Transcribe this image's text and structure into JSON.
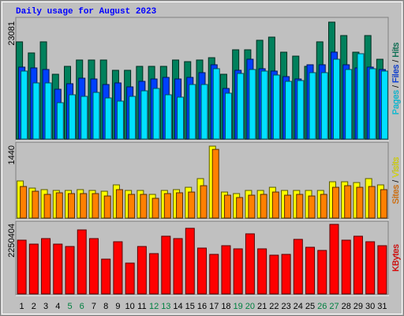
{
  "chart_data": [
    {
      "type": "bar",
      "title": "Daily usage for August 2023",
      "legend_separator": "/",
      "ylim": [
        0,
        23081
      ],
      "yticks": [
        23081
      ],
      "series": [
        {
          "name": "Hits",
          "color": "#00805c",
          "values": [
            19190,
            17000,
            19190,
            12790,
            14350,
            15600,
            15600,
            15600,
            13570,
            13570,
            14350,
            14350,
            14350,
            15600,
            15280,
            15600,
            16060,
            12790,
            17620,
            17620,
            19500,
            20120,
            17150,
            16370,
            14350,
            19190,
            23081,
            20430,
            17150,
            20430,
            15750
          ]
        },
        {
          "name": "Files",
          "color": "#0040ff",
          "values": [
            14196,
            14040,
            13728,
            9828,
            10920,
            12012,
            11856,
            10764,
            11076,
            10296,
            11388,
            11856,
            12168,
            11856,
            12168,
            13104,
            14664,
            9984,
            13572,
            15756,
            13884,
            13416,
            12324,
            11856,
            14664,
            14664,
            17160,
            14664,
            14040,
            14196,
            13728
          ]
        },
        {
          "name": "Pages",
          "color": "#00e0ff",
          "values": [
            13416,
            11076,
            11076,
            7176,
            8736,
            8424,
            9204,
            8112,
            7488,
            8424,
            9516,
            9984,
            8736,
            8268,
            10764,
            10764,
            13884,
            9048,
            12948,
            13728,
            13416,
            12636,
            11388,
            11544,
            13104,
            13104,
            15756,
            13728,
            16848,
            13884,
            13416
          ]
        }
      ]
    },
    {
      "type": "bar",
      "legend_separator": "/",
      "ylim": [
        0,
        1440
      ],
      "yticks": [
        1440
      ],
      "series": [
        {
          "name": "Visits",
          "color": "#ffff00",
          "values": [
            743,
            600,
            569,
            553,
            553,
            569,
            553,
            537,
            664,
            553,
            553,
            474,
            553,
            569,
            616,
            790,
            1440,
            521,
            490,
            553,
            553,
            616,
            553,
            553,
            553,
            553,
            727,
            727,
            711,
            790,
            664
          ]
        },
        {
          "name": "Sites",
          "color": "#ff8000",
          "values": [
            632,
            537,
            474,
            506,
            490,
            490,
            490,
            442,
            569,
            474,
            474,
            395,
            490,
            506,
            521,
            648,
            1375,
            458,
            411,
            458,
            474,
            521,
            458,
            474,
            442,
            474,
            616,
            648,
            616,
            632,
            569
          ]
        }
      ]
    },
    {
      "type": "bar",
      "ylim": [
        0,
        2250404
      ],
      "yticks": [
        2250404
      ],
      "categories": [
        "1",
        "2",
        "3",
        "4",
        "5",
        "6",
        "7",
        "8",
        "9",
        "10",
        "11",
        "12",
        "13",
        "14",
        "15",
        "16",
        "17",
        "18",
        "19",
        "20",
        "21",
        "22",
        "23",
        "24",
        "25",
        "26",
        "27",
        "28",
        "29",
        "30",
        "31"
      ],
      "category_colors": [
        "#000000",
        "#000000",
        "#000000",
        "#000000",
        "#008040",
        "#008040",
        "#000000",
        "#000000",
        "#000000",
        "#000000",
        "#000000",
        "#008040",
        "#008040",
        "#000000",
        "#000000",
        "#000000",
        "#000000",
        "#000000",
        "#008040",
        "#008040",
        "#000000",
        "#000000",
        "#000000",
        "#000000",
        "#000000",
        "#008040",
        "#008040",
        "#000000",
        "#000000",
        "#000000",
        "#000000"
      ],
      "series": [
        {
          "name": "KBytes",
          "color": "#ff0000",
          "values": [
            1739000,
            1611000,
            1790000,
            1611000,
            1534000,
            2071000,
            1790000,
            1125000,
            1688000,
            997000,
            1534000,
            1304000,
            1867000,
            1790000,
            2123000,
            1483000,
            1279000,
            1560000,
            1458000,
            1944000,
            1458000,
            1253000,
            1279000,
            1765000,
            1509000,
            1407000,
            2250404,
            1739000,
            1867000,
            1688000,
            1560000
          ]
        }
      ]
    }
  ]
}
